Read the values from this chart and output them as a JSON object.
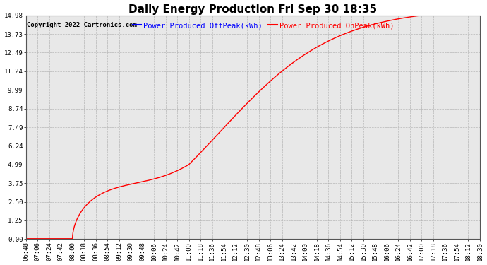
{
  "title": "Daily Energy Production Fri Sep 30 18:35",
  "copyright": "Copyright 2022 Cartronics.com",
  "legend_offpeak": "Power Produced OffPeak(kWh)",
  "legend_onpeak": "Power Produced OnPeak(kWh)",
  "offpeak_color": "blue",
  "onpeak_color": "red",
  "background_color": "#ffffff",
  "plot_bg_color": "#e8e8e8",
  "grid_color": "#aaaaaa",
  "ylim": [
    0.0,
    14.98
  ],
  "yticks": [
    0.0,
    1.25,
    2.5,
    3.75,
    4.99,
    6.24,
    7.49,
    8.74,
    9.99,
    11.24,
    12.49,
    13.73,
    14.98
  ],
  "ytick_labels": [
    "0.00",
    "1.25",
    "2.50",
    "3.75",
    "4.99",
    "6.24",
    "7.49",
    "8.74",
    "9.99",
    "11.24",
    "12.49",
    "13.73",
    "14.98"
  ],
  "xtick_labels": [
    "06:48",
    "07:06",
    "07:24",
    "07:42",
    "08:00",
    "08:18",
    "08:36",
    "08:54",
    "09:12",
    "09:30",
    "09:48",
    "10:06",
    "10:24",
    "10:42",
    "11:00",
    "11:18",
    "11:36",
    "11:54",
    "12:12",
    "12:30",
    "12:48",
    "13:06",
    "13:24",
    "13:42",
    "14:00",
    "14:18",
    "14:36",
    "14:54",
    "15:12",
    "15:30",
    "15:48",
    "16:06",
    "16:24",
    "16:42",
    "17:00",
    "17:18",
    "17:36",
    "17:54",
    "18:12",
    "18:30"
  ],
  "title_fontsize": 11,
  "copyright_fontsize": 6.5,
  "legend_fontsize": 7.5,
  "tick_fontsize": 6.5
}
